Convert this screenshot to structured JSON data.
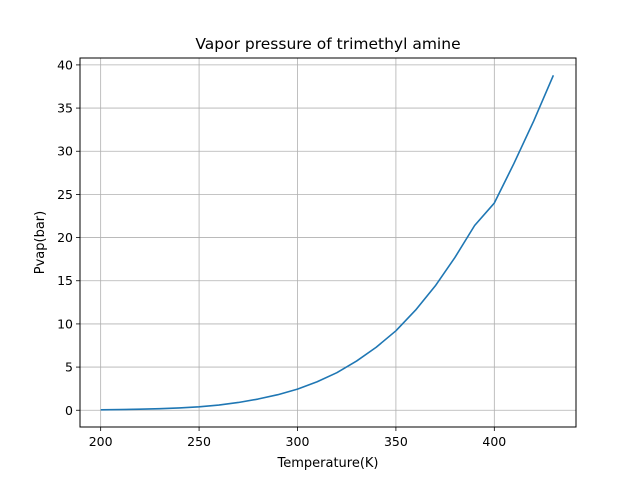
{
  "chart_data": {
    "type": "line",
    "title": "Vapor pressure of trimethyl amine",
    "xlabel": "Temperature(K)",
    "ylabel": "Pvap(bar)",
    "xlim": [
      189.5,
      441.5
    ],
    "ylim": [
      -1.94,
      40.8
    ],
    "xticks": [
      200,
      250,
      300,
      350,
      400
    ],
    "yticks": [
      0,
      5,
      10,
      15,
      20,
      25,
      30,
      35,
      40
    ],
    "grid": true,
    "line_color": "#1f77b4",
    "series": [
      {
        "x": [
          200,
          210,
          220,
          230,
          240,
          250,
          260,
          270,
          280,
          290,
          300,
          310,
          320,
          330,
          340,
          350,
          360,
          370,
          380,
          390,
          400,
          410,
          420,
          430
        ],
        "values": [
          0.05,
          0.08,
          0.12,
          0.18,
          0.27,
          0.4,
          0.6,
          0.9,
          1.3,
          1.8,
          2.45,
          3.3,
          4.35,
          5.7,
          7.3,
          9.2,
          11.6,
          14.4,
          17.7,
          21.4,
          24.0,
          28.6,
          33.5,
          38.8
        ]
      }
    ]
  }
}
